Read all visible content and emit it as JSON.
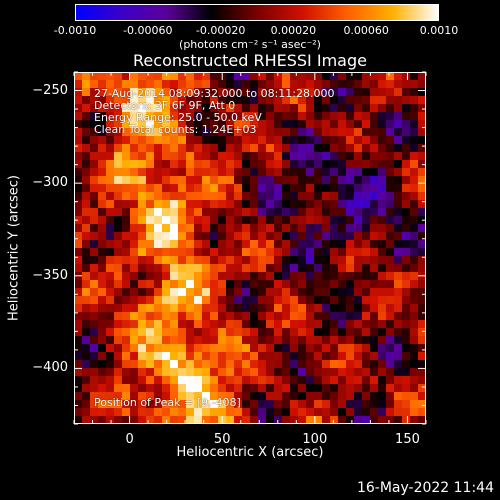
{
  "colorbar": {
    "stops": [
      "#0000ff",
      "#3c00c8",
      "#5a009a",
      "#000000",
      "#7a0000",
      "#d01000",
      "#ff6000",
      "#ffb000",
      "#ffffff"
    ],
    "ticks": [
      "-0.0010",
      "-0.00060",
      "-0.00020",
      "0.00020",
      "0.00060",
      "0.0010"
    ],
    "unit": "(photons cm⁻² s⁻¹ asec⁻²)"
  },
  "chart_data": {
    "type": "heatmap",
    "title": "Reconstructed RHESSI Image",
    "xlabel": "Heliocentric X (arcsec)",
    "ylabel": "Heliocentric Y (arcsec)",
    "xlim": [
      -30,
      160
    ],
    "ylim": [
      -430,
      -240
    ],
    "xticks": [
      0,
      50,
      100,
      150
    ],
    "yticks": [
      -250,
      -300,
      -350,
      -400
    ],
    "clim": [
      -0.001,
      0.001
    ],
    "peak": [
      9,
      -408
    ],
    "annotations": [
      "27-Aug-2014 08:09:32.000 to 08:11:28.000",
      "Detectors: 3F 6F 9F, Att 0",
      "Energy Range: 25.0 - 50.0 keV",
      "Clean     Total counts: 1.24E+03",
      "Position of Peak = [9,-408]"
    ],
    "grid": false
  },
  "footer": {
    "timestamp": "16-May-2022 11:44"
  }
}
